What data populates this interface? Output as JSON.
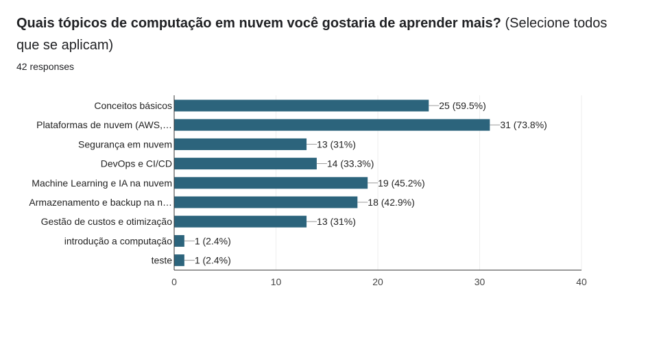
{
  "question": {
    "title_bold": "Quais tópicos de computação em nuvem você gostaria de aprender mais?",
    "title_normal": " (Selecione todos que se aplicam)",
    "responses": "42 responses"
  },
  "colors": {
    "bar": "#2c647c",
    "grid": "#eeeeee",
    "axis": "#333333",
    "label": "#222222",
    "connector": "#999999"
  },
  "chart_data": {
    "type": "bar",
    "orientation": "horizontal",
    "categories": [
      "Conceitos básicos",
      "Plataformas de nuvem (AWS,…",
      "Segurança em nuvem",
      "DevOps e CI/CD",
      "Machine Learning e IA na nuvem",
      "Armazenamento e backup na n…",
      "Gestão de custos e otimização",
      "introdução a computação",
      "teste"
    ],
    "values": [
      25,
      31,
      13,
      14,
      19,
      18,
      13,
      1,
      1
    ],
    "data_labels": [
      "25 (59.5%)",
      "31 (73.8%)",
      "13 (31%)",
      "14 (33.3%)",
      "19 (45.2%)",
      "18 (42.9%)",
      "13 (31%)",
      "1 (2.4%)",
      "1 (2.4%)"
    ],
    "xlim": [
      0,
      40
    ],
    "xticks": [
      0,
      10,
      20,
      30,
      40
    ],
    "grid": true
  }
}
